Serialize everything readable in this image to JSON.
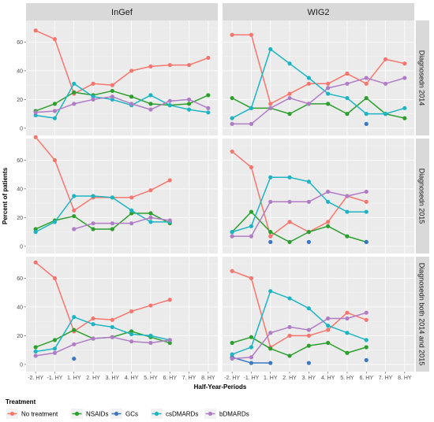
{
  "chart_data": {
    "type": "line",
    "xlabel": "Half-Year-Periods",
    "ylabel": "Percent of patients",
    "x_categories": [
      "-2. HY",
      "-1. HY",
      "1. HY",
      "2. HY",
      "3. HY",
      "4. HY",
      "5. HY",
      "6. HY",
      "7. HY",
      "8. HY"
    ],
    "ylim": [
      -5,
      75
    ],
    "y_ticks": [
      0,
      20,
      40,
      60
    ],
    "y_tick_labels": [
      "0",
      "20",
      "40",
      "60"
    ],
    "columns": [
      "InGef",
      "WIG2"
    ],
    "rows": [
      "Diagnosedn 2014",
      "Diagnosedn 2015",
      "Diagnosedn both 2014 and 2015"
    ],
    "legend": {
      "title": "Treatment",
      "position": "bottom"
    },
    "series_meta": [
      {
        "key": "no_treatment",
        "name": "No treatment",
        "color": "#F8766D"
      },
      {
        "key": "nsaids",
        "name": "NSAIDs",
        "color": "#2CA02C"
      },
      {
        "key": "gcs",
        "name": "GCs",
        "color": "#3A78C3"
      },
      {
        "key": "csdmards",
        "name": "csDMARDs",
        "color": "#1CB5C4"
      },
      {
        "key": "bdmards",
        "name": "bDMARDs",
        "color": "#B07CC6"
      }
    ],
    "panels": [
      {
        "row": 0,
        "col": 0,
        "series": {
          "no_treatment": [
            68,
            62,
            24,
            31,
            30,
            40,
            43,
            44,
            44,
            49
          ],
          "nsaids": [
            12,
            17,
            25,
            23,
            26,
            22,
            17,
            16,
            17,
            23
          ],
          "gcs": [
            null,
            null,
            null,
            null,
            null,
            null,
            null,
            null,
            null,
            null
          ],
          "csdmards": [
            9,
            7,
            31,
            22,
            20,
            16,
            23,
            16,
            13,
            11
          ],
          "bdmards": [
            11,
            12,
            17,
            20,
            22,
            17,
            13,
            19,
            20,
            14
          ]
        }
      },
      {
        "row": 0,
        "col": 1,
        "series": {
          "no_treatment": [
            65,
            65,
            17,
            24,
            31,
            31,
            38,
            31,
            48,
            45
          ],
          "nsaids": [
            21,
            14,
            14,
            10,
            17,
            17,
            10,
            21,
            10,
            7
          ],
          "gcs": [
            null,
            null,
            null,
            null,
            null,
            null,
            null,
            3,
            null,
            null
          ],
          "csdmards": [
            7,
            14,
            55,
            45,
            35,
            24,
            21,
            10,
            10,
            14
          ],
          "bdmards": [
            3,
            3,
            14,
            21,
            17,
            28,
            31,
            35,
            31,
            35
          ]
        }
      },
      {
        "row": 1,
        "col": 0,
        "series": {
          "no_treatment": [
            76,
            60,
            25,
            34,
            34,
            34,
            39,
            46,
            null,
            null
          ],
          "nsaids": [
            12,
            18,
            21,
            12,
            12,
            23,
            23,
            16,
            null,
            null
          ],
          "gcs": [
            null,
            null,
            null,
            null,
            null,
            null,
            null,
            null,
            null,
            null
          ],
          "csdmards": [
            10,
            17,
            35,
            35,
            34,
            25,
            17,
            17,
            null,
            null
          ],
          "bdmards": [
            null,
            null,
            12,
            16,
            16,
            16,
            20,
            18,
            null,
            null
          ]
        }
      },
      {
        "row": 1,
        "col": 1,
        "series": {
          "no_treatment": [
            66,
            55,
            7,
            17,
            10,
            17,
            35,
            31,
            null,
            null
          ],
          "nsaids": [
            10,
            24,
            10,
            3,
            10,
            14,
            7,
            3,
            null,
            null
          ],
          "gcs": [
            null,
            null,
            3,
            null,
            3,
            null,
            null,
            3,
            null,
            null
          ],
          "csdmards": [
            10,
            14,
            48,
            48,
            45,
            31,
            24,
            24,
            null,
            null
          ],
          "bdmards": [
            7,
            7,
            31,
            31,
            31,
            38,
            35,
            38,
            null,
            null
          ]
        }
      },
      {
        "row": 2,
        "col": 0,
        "series": {
          "no_treatment": [
            71,
            60,
            23,
            32,
            31,
            37,
            41,
            45,
            null,
            null
          ],
          "nsaids": [
            12,
            17,
            24,
            18,
            19,
            23,
            19,
            15,
            null,
            null
          ],
          "gcs": [
            null,
            null,
            4,
            null,
            null,
            null,
            null,
            null,
            null,
            null
          ],
          "csdmards": [
            9,
            11,
            33,
            28,
            26,
            21,
            20,
            17,
            null,
            null
          ],
          "bdmards": [
            6,
            8,
            14,
            18,
            19,
            16,
            15,
            17,
            null,
            null
          ]
        }
      },
      {
        "row": 2,
        "col": 1,
        "series": {
          "no_treatment": [
            65,
            60,
            12,
            20,
            20,
            24,
            36,
            31,
            null,
            null
          ],
          "nsaids": [
            15,
            19,
            11,
            6,
            13,
            15,
            8,
            12,
            null,
            null
          ],
          "gcs": [
            5,
            1,
            1,
            null,
            1,
            null,
            null,
            3,
            null,
            null
          ],
          "csdmards": [
            7,
            12,
            51,
            46,
            39,
            27,
            22,
            17,
            null,
            null
          ],
          "bdmards": [
            4,
            5,
            22,
            26,
            24,
            32,
            32,
            36,
            null,
            null
          ]
        }
      }
    ]
  }
}
